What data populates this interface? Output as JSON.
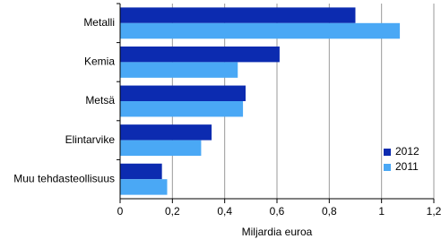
{
  "chart_data": {
    "type": "barh",
    "categories": [
      "Metalli",
      "Kemia",
      "Metsä",
      "Elintarvike",
      "Muu tehdasteollisuus"
    ],
    "series": [
      {
        "name": "2012",
        "color": "#0c2bb0",
        "values": [
          0.9,
          0.61,
          0.48,
          0.35,
          0.16
        ]
      },
      {
        "name": "2011",
        "color": "#4aa8f5",
        "values": [
          1.07,
          0.45,
          0.47,
          0.31,
          0.18
        ]
      }
    ],
    "xlabel": "Miljardia euroa",
    "xlim": [
      0,
      1.2
    ],
    "xticks": [
      0,
      {
        "value": 0.2,
        "label": "0,2"
      },
      {
        "value": 0.4,
        "label": "0,4"
      },
      {
        "value": 0.6,
        "label": "0,6"
      },
      {
        "value": 0.8,
        "label": "0,8"
      },
      {
        "value": 1,
        "label": "1"
      },
      {
        "value": 1.2,
        "label": "1,2"
      }
    ],
    "grid": true,
    "legend": "lower right"
  }
}
